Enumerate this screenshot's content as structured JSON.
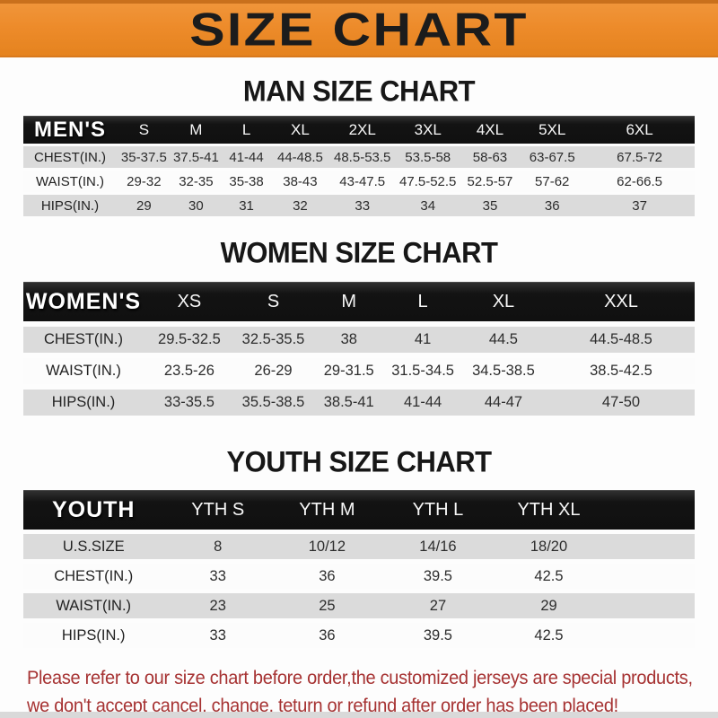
{
  "banner": {
    "title": "SIZE CHART"
  },
  "sections": [
    {
      "id": "men",
      "heading": "MAN SIZE CHART",
      "corner_label": "MEN'S",
      "columns": [
        "S",
        "M",
        "L",
        "XL",
        "2XL",
        "3XL",
        "4XL",
        "5XL",
        "6XL"
      ],
      "rows": [
        {
          "label": "CHEST(IN.)",
          "values": [
            "35-37.5",
            "37.5-41",
            "41-44",
            "44-48.5",
            "48.5-53.5",
            "53.5-58",
            "58-63",
            "63-67.5",
            "67.5-72"
          ]
        },
        {
          "label": "WAIST(IN.)",
          "values": [
            "29-32",
            "32-35",
            "35-38",
            "38-43",
            "43-47.5",
            "47.5-52.5",
            "52.5-57",
            "57-62",
            "62-66.5"
          ]
        },
        {
          "label": "HIPS(IN.)",
          "values": [
            "29",
            "30",
            "31",
            "32",
            "33",
            "34",
            "35",
            "36",
            "37"
          ]
        }
      ]
    },
    {
      "id": "women",
      "heading": "WOMEN SIZE CHART",
      "corner_label": "WOMEN'S",
      "columns": [
        "XS",
        "S",
        "M",
        "L",
        "XL",
        "XXL"
      ],
      "rows": [
        {
          "label": "CHEST(IN.)",
          "values": [
            "29.5-32.5",
            "32.5-35.5",
            "38",
            "41",
            "44.5",
            "44.5-48.5"
          ]
        },
        {
          "label": "WAIST(IN.)",
          "values": [
            "23.5-26",
            "26-29",
            "29-31.5",
            "31.5-34.5",
            "34.5-38.5",
            "38.5-42.5"
          ]
        },
        {
          "label": "HIPS(IN.)",
          "values": [
            "33-35.5",
            "35.5-38.5",
            "38.5-41",
            "41-44",
            "44-47",
            "47-50"
          ]
        }
      ]
    },
    {
      "id": "youth",
      "heading": "YOUTH SIZE CHART",
      "corner_label": "YOUTH",
      "columns": [
        "YTH S",
        "YTH M",
        "YTH L",
        "YTH XL"
      ],
      "has_trailing_space": true,
      "rows": [
        {
          "label": "U.S.SIZE",
          "values": [
            "8",
            "10/12",
            "14/16",
            "18/20"
          ]
        },
        {
          "label": "CHEST(IN.)",
          "values": [
            "33",
            "36",
            "39.5",
            "42.5"
          ]
        },
        {
          "label": "WAIST(IN.)",
          "values": [
            "23",
            "25",
            "27",
            "29"
          ]
        },
        {
          "label": "HIPS(IN.)",
          "values": [
            "33",
            "36",
            "39.5",
            "42.5"
          ]
        }
      ]
    }
  ],
  "footer": {
    "line1": "Please refer to our size chart before order,the customized jerseys are special products,",
    "line2": "we don't accept cancel, change, teturn or refund after order has been placed!"
  },
  "colors": {
    "banner_orange": "#ed8b2a",
    "bar_black": "#151515",
    "row_gray": "#dbdbdb",
    "footer_red": "#a63232"
  }
}
